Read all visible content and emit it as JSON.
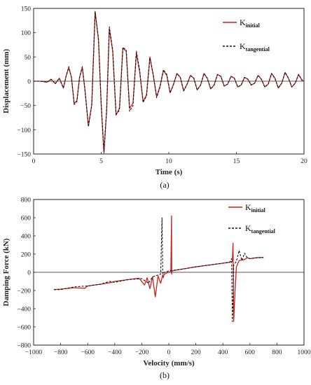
{
  "chart_data": [
    {
      "type": "line",
      "panel_label": "(a)",
      "xlabel": "Time (s)",
      "ylabel": "Displacement (mm)",
      "xlim": [
        0,
        20
      ],
      "ylim": [
        -150,
        150
      ],
      "xticks": [
        0,
        5,
        10,
        15,
        20
      ],
      "yticks": [
        -150,
        -100,
        -50,
        0,
        50,
        100,
        150
      ],
      "grid": false,
      "legend_position": "top-right",
      "series": [
        {
          "name_main": "K",
          "name_sub": "initial",
          "color": "#cc1f1f",
          "dash": "solid",
          "x": [
            0,
            0.5,
            1,
            1.3,
            1.6,
            1.9,
            2.2,
            2.4,
            2.6,
            2.8,
            3.0,
            3.2,
            3.4,
            3.6,
            3.8,
            4.05,
            4.3,
            4.55,
            4.8,
            5.0,
            5.2,
            5.4,
            5.6,
            5.85,
            6.1,
            6.35,
            6.6,
            6.85,
            7.1,
            7.35,
            7.6,
            7.85,
            8.1,
            8.35,
            8.6,
            8.85,
            9.1,
            9.35,
            9.6,
            9.85,
            10.1,
            10.35,
            10.6,
            10.85,
            11.1,
            11.35,
            11.6,
            11.85,
            12.1,
            12.35,
            12.6,
            12.85,
            13.1,
            13.35,
            13.6,
            13.85,
            14.1,
            14.35,
            14.6,
            14.85,
            15.1,
            15.35,
            15.6,
            15.85,
            16.1,
            16.35,
            16.6,
            16.85,
            17.1,
            17.35,
            17.6,
            17.85,
            18.1,
            18.35,
            18.6,
            18.85,
            19.1,
            19.35,
            19.6,
            19.85,
            20
          ],
          "y": [
            0,
            0,
            -2,
            4,
            -5,
            6,
            -14,
            10,
            28,
            8,
            -46,
            -40,
            8,
            28,
            -18,
            -92,
            -48,
            144,
            85,
            -50,
            -148,
            -62,
            108,
            62,
            -70,
            -55,
            68,
            62,
            -56,
            -45,
            58,
            18,
            -42,
            -28,
            50,
            12,
            -32,
            -10,
            22,
            12,
            -24,
            -6,
            16,
            8,
            -20,
            -6,
            12,
            6,
            -18,
            -8,
            16,
            6,
            -16,
            -8,
            14,
            10,
            -10,
            -6,
            10,
            6,
            -12,
            -8,
            8,
            4,
            -8,
            -4,
            12,
            4,
            -12,
            -6,
            16,
            6,
            -14,
            -4,
            18,
            6,
            -12,
            -4,
            14,
            2,
            0
          ]
        },
        {
          "name_main": "K",
          "name_sub": "tangential",
          "color": "#111111",
          "dash": "dashed",
          "x": [
            0,
            0.5,
            1,
            1.3,
            1.6,
            1.9,
            2.2,
            2.4,
            2.6,
            2.8,
            3.0,
            3.2,
            3.4,
            3.6,
            3.8,
            4.05,
            4.3,
            4.55,
            4.8,
            5.0,
            5.2,
            5.4,
            5.6,
            5.85,
            6.1,
            6.35,
            6.6,
            6.85,
            7.1,
            7.35,
            7.6,
            7.85,
            8.1,
            8.35,
            8.6,
            8.85,
            9.1,
            9.35,
            9.6,
            9.85,
            10.1,
            10.35,
            10.6,
            10.85,
            11.1,
            11.35,
            11.6,
            11.85,
            12.1,
            12.35,
            12.6,
            12.85,
            13.1,
            13.35,
            13.6,
            13.85,
            14.1,
            14.35,
            14.6,
            14.85,
            15.1,
            15.35,
            15.6,
            15.85,
            16.1,
            16.35,
            16.6,
            16.85,
            17.1,
            17.35,
            17.6,
            17.85,
            18.1,
            18.35,
            18.6,
            18.85,
            19.1,
            19.35,
            19.6,
            19.85,
            20
          ],
          "y": [
            0,
            0,
            -2,
            4,
            -5,
            6,
            -14,
            10,
            30,
            8,
            -48,
            -42,
            8,
            30,
            -18,
            -94,
            -50,
            142,
            88,
            -48,
            -145,
            -60,
            112,
            64,
            -68,
            -60,
            70,
            64,
            -62,
            -50,
            62,
            22,
            -44,
            -30,
            48,
            14,
            -34,
            -12,
            24,
            14,
            -24,
            -6,
            16,
            8,
            -20,
            -6,
            12,
            6,
            -18,
            -8,
            16,
            6,
            -16,
            -8,
            14,
            10,
            -10,
            -6,
            10,
            6,
            -12,
            -8,
            8,
            4,
            -8,
            -4,
            12,
            4,
            -12,
            -6,
            16,
            6,
            -14,
            -4,
            18,
            6,
            -12,
            -4,
            14,
            2,
            0
          ]
        }
      ]
    },
    {
      "type": "scatter",
      "panel_label": "(b)",
      "xlabel": "Velocity (mm/s)",
      "ylabel": "Damping Force (kN)",
      "xlim": [
        -1000,
        1000
      ],
      "ylim": [
        -800,
        800
      ],
      "xticks": [
        -1000,
        -800,
        -600,
        -400,
        -200,
        0,
        200,
        400,
        600,
        800,
        1000
      ],
      "yticks": [
        -800,
        -600,
        -400,
        -200,
        0,
        200,
        400,
        600,
        800
      ],
      "grid": false,
      "legend_position": "top-right",
      "series": [
        {
          "name_main": "K",
          "name_sub": "initial",
          "color": "#cc1f1f",
          "dash": "solid",
          "x": [
            -850,
            -800,
            -700,
            -620,
            -600,
            -500,
            -420,
            -400,
            -300,
            -220,
            -180,
            -160,
            -140,
            -120,
            -100,
            -80,
            -60,
            -45,
            -40,
            -35,
            -30,
            -20,
            0,
            15,
            20,
            22,
            25,
            40,
            100,
            200,
            300,
            400,
            450,
            470,
            475,
            480,
            490,
            500,
            520,
            560,
            580,
            600,
            650,
            700
          ],
          "y": [
            -190,
            -185,
            -170,
            -175,
            -150,
            -130,
            -110,
            -100,
            -80,
            -65,
            -140,
            -60,
            -180,
            -50,
            -270,
            -40,
            -120,
            -30,
            -60,
            -20,
            -20,
            -10,
            0,
            10,
            620,
            -20,
            15,
            20,
            35,
            60,
            80,
            100,
            110,
            120,
            320,
            -540,
            -200,
            60,
            130,
            140,
            160,
            150,
            160,
            165
          ]
        },
        {
          "name_main": "K",
          "name_sub": "tangential",
          "color": "#111111",
          "dash": "dashed",
          "x": [
            -850,
            -800,
            -700,
            -600,
            -500,
            -440,
            -400,
            -300,
            -200,
            -150,
            -120,
            -100,
            -80,
            -60,
            -50,
            -45,
            -40,
            -30,
            0,
            100,
            200,
            300,
            400,
            450,
            465,
            470,
            475,
            480,
            500,
            520,
            540,
            560,
            580,
            600,
            650,
            700
          ],
          "y": [
            -190,
            -190,
            -160,
            -150,
            -130,
            -100,
            -110,
            -80,
            -70,
            -120,
            -50,
            -40,
            -30,
            -20,
            600,
            -20,
            -10,
            0,
            15,
            35,
            60,
            80,
            100,
            110,
            150,
            -540,
            -300,
            80,
            120,
            240,
            130,
            210,
            160,
            150,
            160,
            160
          ]
        }
      ]
    }
  ]
}
